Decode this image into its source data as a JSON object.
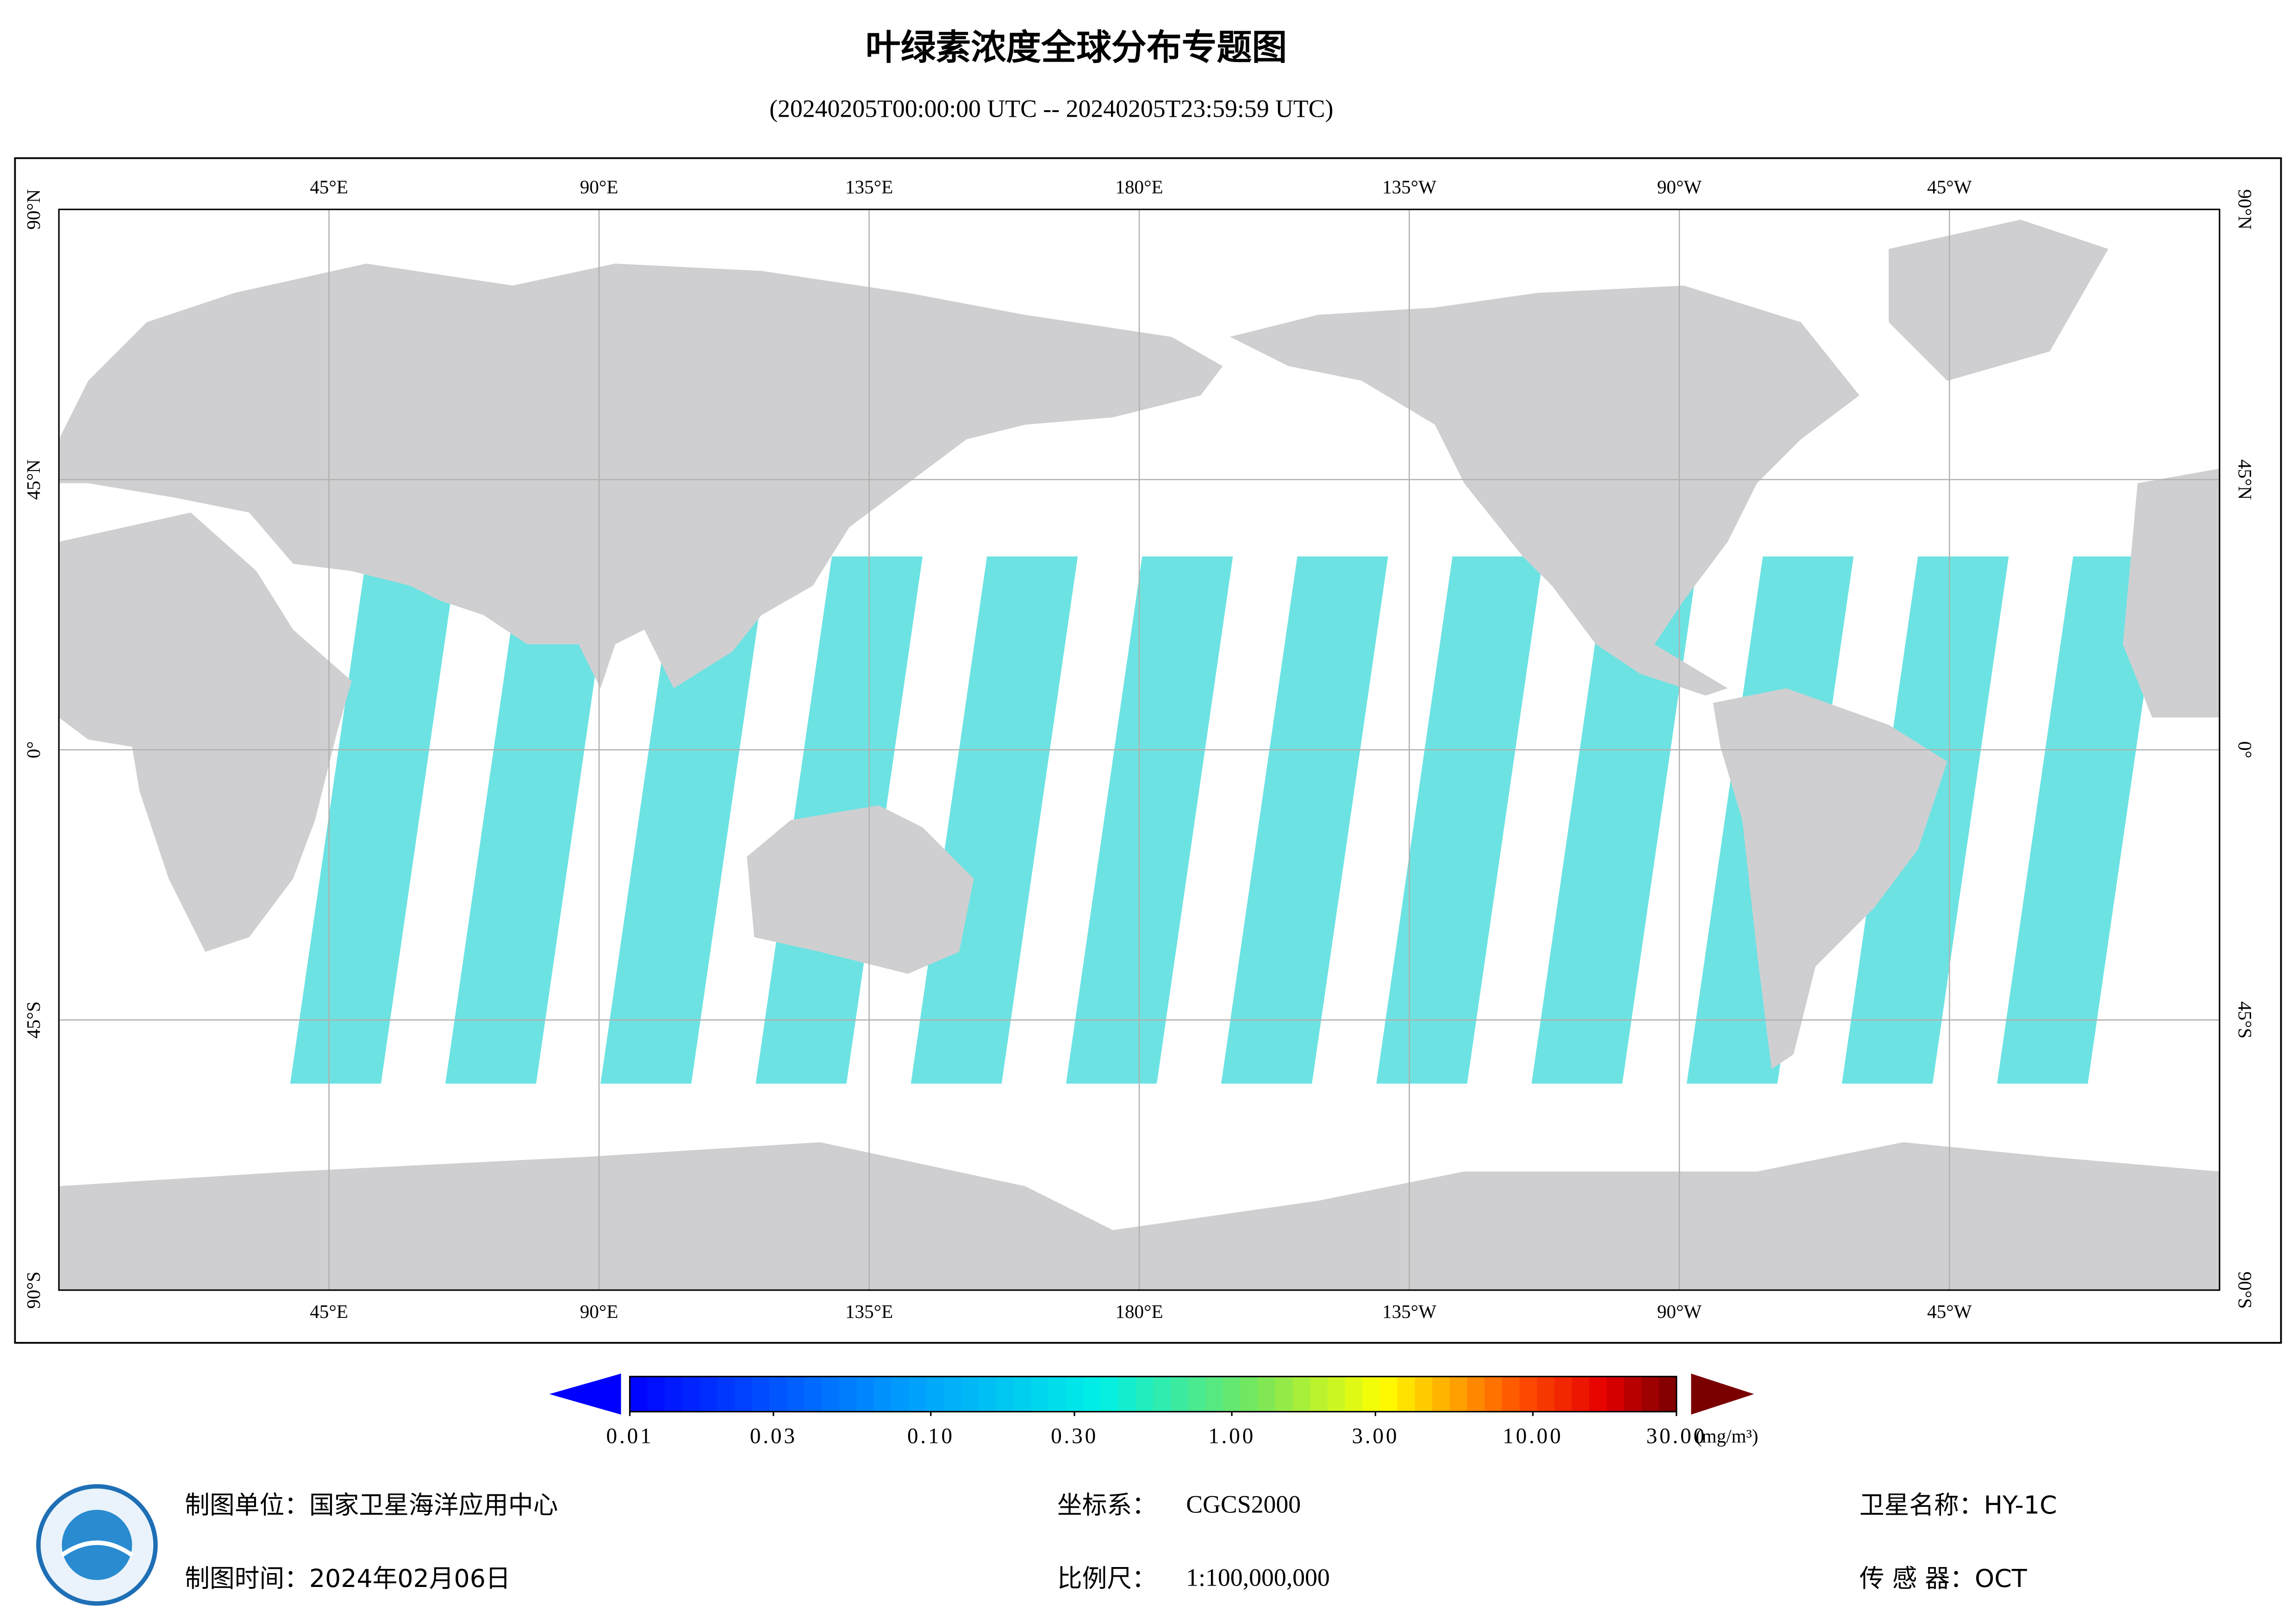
{
  "header": {
    "title": "叶绿素浓度全球分布专题图",
    "subtitle": "(20240205T00:00:00 UTC -- 20240205T23:59:59 UTC)"
  },
  "map": {
    "lon_labels": [
      {
        "value": 45,
        "label": "45°E"
      },
      {
        "value": 90,
        "label": "90°E"
      },
      {
        "value": 135,
        "label": "135°E"
      },
      {
        "value": 180,
        "label": "180°E"
      },
      {
        "value": 225,
        "label": "135°W"
      },
      {
        "value": 270,
        "label": "90°W"
      },
      {
        "value": 315,
        "label": "45°W"
      }
    ],
    "lat_labels": [
      {
        "value": 90,
        "label": "90°N"
      },
      {
        "value": 45,
        "label": "45°N"
      },
      {
        "value": 0,
        "label": "0°"
      },
      {
        "value": -45,
        "label": "45°S"
      },
      {
        "value": -90,
        "label": "90°S"
      }
    ]
  },
  "colorbar": {
    "range": [
      0.01,
      30
    ],
    "ticks": [
      {
        "value": 0.01,
        "label": "0.01"
      },
      {
        "value": 0.03,
        "label": "0.03"
      },
      {
        "value": 0.1,
        "label": "0.10"
      },
      {
        "value": 0.3,
        "label": "0.30"
      },
      {
        "value": 1,
        "label": "1.00"
      },
      {
        "value": 3,
        "label": "3.00"
      },
      {
        "value": 10,
        "label": "10.00"
      },
      {
        "value": 30,
        "label": "30.00"
      }
    ],
    "unit": "(mg/m³)"
  },
  "footer": {
    "producer": "制图单位：国家卫星海洋应用中心",
    "date": "制图时间：2024年02月06日",
    "crs_label": "坐标系：",
    "crs": "CGCS2000",
    "scale_label": "比例尺：",
    "scale": "1:100,000,000",
    "satellite": "卫星名称：HY-1C",
    "sensor": "传 感 器：OCT"
  }
}
